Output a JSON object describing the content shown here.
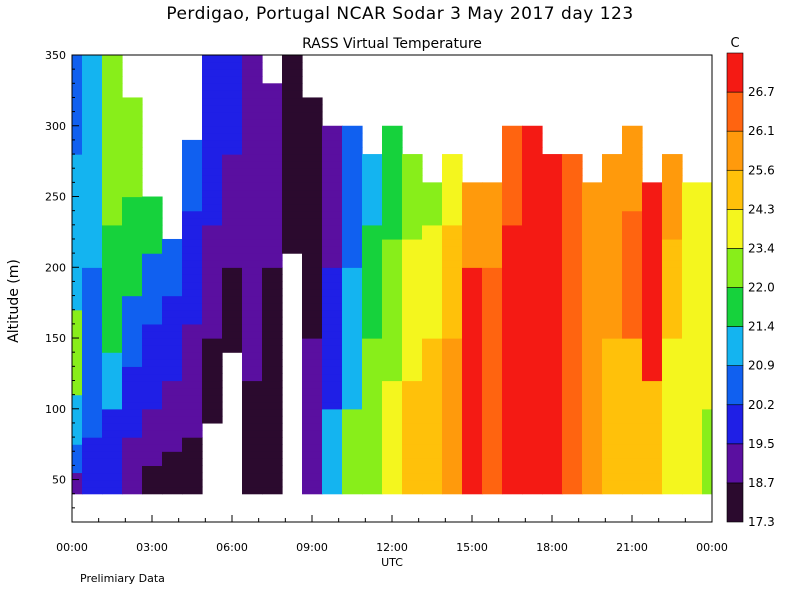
{
  "header": {
    "title": "Perdigao, Portugal  NCAR Sodar   3 May 2017  day 123",
    "subtitle": "RASS Virtual Temperature",
    "footer_note": "Prelimiary Data"
  },
  "chart_data": {
    "type": "heatmap",
    "title": "Perdigao, Portugal  NCAR Sodar   3 May 2017  day 123",
    "subtitle": "RASS Virtual Temperature",
    "xlabel": "UTC",
    "ylabel": "Altitude (m)",
    "x_ticks": [
      "00:00",
      "03:00",
      "06:00",
      "09:00",
      "12:00",
      "15:00",
      "18:00",
      "21:00",
      "00:00"
    ],
    "x_range_hours": [
      0,
      24
    ],
    "y_ticks": [
      50,
      100,
      150,
      200,
      250,
      300,
      350
    ],
    "ylim": [
      20,
      350
    ],
    "data_bottom_m": 40,
    "colorbar": {
      "unit": "C",
      "levels": [
        17.3,
        18.7,
        19.5,
        20.2,
        20.9,
        21.4,
        22.0,
        23.4,
        24.3,
        25.6,
        26.1,
        26.7
      ],
      "colors": [
        "#2b0a2e",
        "#5a0fa0",
        "#1f1fe6",
        "#1060f0",
        "#14b4f0",
        "#16d23c",
        "#88ee1a",
        "#f4f61e",
        "#ffc10a",
        "#ff9a0c",
        "#ff6410",
        "#f41a14"
      ]
    },
    "columns": [
      {
        "hour": 0.0,
        "top_m": 350,
        "by_altitude": [
          [
            40,
            18.7
          ],
          [
            55,
            20.2
          ],
          [
            75,
            20.9
          ],
          [
            110,
            22.0
          ],
          [
            170,
            20.9
          ],
          [
            280,
            20.2
          ],
          [
            350,
            20.2
          ]
        ]
      },
      {
        "hour": 0.75,
        "top_m": 350,
        "by_altitude": [
          [
            40,
            19.5
          ],
          [
            80,
            20.2
          ],
          [
            200,
            20.9
          ],
          [
            300,
            20.9
          ],
          [
            350,
            20.2
          ]
        ]
      },
      {
        "hour": 1.5,
        "top_m": 350,
        "by_altitude": [
          [
            40,
            19.5
          ],
          [
            100,
            20.9
          ],
          [
            140,
            21.4
          ],
          [
            230,
            22.0
          ],
          [
            350,
            20.9
          ]
        ]
      },
      {
        "hour": 2.25,
        "top_m": 320,
        "by_altitude": [
          [
            40,
            18.7
          ],
          [
            80,
            19.5
          ],
          [
            130,
            20.2
          ],
          [
            180,
            21.4
          ],
          [
            250,
            22.0
          ],
          [
            320,
            22.0
          ]
        ]
      },
      {
        "hour": 3.0,
        "top_m": 250,
        "by_altitude": [
          [
            40,
            17.3
          ],
          [
            60,
            18.7
          ],
          [
            100,
            19.5
          ],
          [
            160,
            20.2
          ],
          [
            210,
            21.4
          ],
          [
            250,
            20.9
          ]
        ]
      },
      {
        "hour": 3.75,
        "top_m": 220,
        "by_altitude": [
          [
            40,
            17.3
          ],
          [
            70,
            18.7
          ],
          [
            120,
            19.5
          ],
          [
            180,
            20.2
          ],
          [
            220,
            20.9
          ]
        ]
      },
      {
        "hour": 4.5,
        "top_m": 290,
        "by_altitude": [
          [
            40,
            17.3
          ],
          [
            80,
            18.7
          ],
          [
            160,
            19.5
          ],
          [
            240,
            20.2
          ],
          [
            290,
            20.9
          ]
        ]
      },
      {
        "hour": 5.25,
        "top_m": 350,
        "by_altitude": [
          [
            40,
            null
          ],
          [
            90,
            17.3
          ],
          [
            150,
            18.7
          ],
          [
            230,
            19.5
          ],
          [
            350,
            20.2
          ]
        ]
      },
      {
        "hour": 6.0,
        "top_m": 350,
        "by_altitude": [
          [
            40,
            null
          ],
          [
            140,
            17.3
          ],
          [
            200,
            18.7
          ],
          [
            280,
            19.5
          ],
          [
            350,
            20.2
          ]
        ]
      },
      {
        "hour": 6.75,
        "top_m": 350,
        "by_altitude": [
          [
            40,
            17.3
          ],
          [
            120,
            18.7
          ],
          [
            240,
            18.7
          ],
          [
            300,
            18.7
          ],
          [
            350,
            19.5
          ]
        ]
      },
      {
        "hour": 7.5,
        "top_m": 330,
        "by_altitude": [
          [
            40,
            17.3
          ],
          [
            90,
            17.3
          ],
          [
            200,
            18.7
          ],
          [
            330,
            18.7
          ]
        ]
      },
      {
        "hour": 8.25,
        "top_m": 350,
        "by_altitude": [
          [
            40,
            null
          ],
          [
            100,
            null
          ],
          [
            210,
            17.3
          ],
          [
            290,
            17.3
          ],
          [
            350,
            18.7
          ]
        ]
      },
      {
        "hour": 9.0,
        "top_m": 320,
        "by_altitude": [
          [
            40,
            18.7
          ],
          [
            150,
            17.3
          ],
          [
            250,
            17.3
          ],
          [
            320,
            18.7
          ]
        ]
      },
      {
        "hour": 9.75,
        "top_m": 300,
        "by_altitude": [
          [
            40,
            20.9
          ],
          [
            100,
            19.5
          ],
          [
            200,
            18.7
          ],
          [
            300,
            18.7
          ]
        ]
      },
      {
        "hour": 10.5,
        "top_m": 300,
        "by_altitude": [
          [
            40,
            22.0
          ],
          [
            100,
            20.9
          ],
          [
            200,
            20.2
          ],
          [
            300,
            19.5
          ]
        ]
      },
      {
        "hour": 11.25,
        "top_m": 280,
        "by_altitude": [
          [
            40,
            22.0
          ],
          [
            150,
            21.4
          ],
          [
            230,
            20.9
          ],
          [
            280,
            20.2
          ]
        ]
      },
      {
        "hour": 12.0,
        "top_m": 300,
        "by_altitude": [
          [
            40,
            23.4
          ],
          [
            120,
            22.0
          ],
          [
            220,
            21.4
          ],
          [
            300,
            21.4
          ]
        ]
      },
      {
        "hour": 12.75,
        "top_m": 280,
        "by_altitude": [
          [
            40,
            24.3
          ],
          [
            120,
            23.4
          ],
          [
            220,
            22.0
          ],
          [
            280,
            21.4
          ]
        ]
      },
      {
        "hour": 13.5,
        "top_m": 260,
        "by_altitude": [
          [
            40,
            24.3
          ],
          [
            150,
            23.4
          ],
          [
            230,
            22.0
          ],
          [
            260,
            22.0
          ]
        ]
      },
      {
        "hour": 14.25,
        "top_m": 280,
        "by_altitude": [
          [
            40,
            25.6
          ],
          [
            150,
            24.3
          ],
          [
            230,
            23.4
          ],
          [
            280,
            22.0
          ]
        ]
      },
      {
        "hour": 15.0,
        "top_m": 260,
        "by_altitude": [
          [
            40,
            26.7
          ],
          [
            80,
            26.7
          ],
          [
            200,
            25.6
          ],
          [
            260,
            24.3
          ]
        ]
      },
      {
        "hour": 15.75,
        "top_m": 260,
        "by_altitude": [
          [
            40,
            26.1
          ],
          [
            200,
            25.6
          ],
          [
            260,
            24.3
          ]
        ]
      },
      {
        "hour": 16.5,
        "top_m": 300,
        "by_altitude": [
          [
            40,
            26.7
          ],
          [
            150,
            26.7
          ],
          [
            230,
            26.1
          ],
          [
            300,
            23.4
          ]
        ]
      },
      {
        "hour": 17.25,
        "top_m": 300,
        "by_altitude": [
          [
            40,
            26.7
          ],
          [
            150,
            26.7
          ],
          [
            230,
            26.7
          ],
          [
            300,
            26.1
          ]
        ]
      },
      {
        "hour": 18.0,
        "top_m": 280,
        "by_altitude": [
          [
            40,
            26.7
          ],
          [
            200,
            26.7
          ],
          [
            280,
            25.6
          ]
        ]
      },
      {
        "hour": 18.75,
        "top_m": 280,
        "by_altitude": [
          [
            40,
            26.1
          ],
          [
            180,
            26.1
          ],
          [
            280,
            25.6
          ]
        ]
      },
      {
        "hour": 19.5,
        "top_m": 260,
        "by_altitude": [
          [
            40,
            25.6
          ],
          [
            180,
            25.6
          ],
          [
            260,
            24.3
          ]
        ]
      },
      {
        "hour": 20.25,
        "top_m": 280,
        "by_altitude": [
          [
            40,
            24.3
          ],
          [
            150,
            25.6
          ],
          [
            280,
            24.3
          ]
        ]
      },
      {
        "hour": 21.0,
        "top_m": 300,
        "by_altitude": [
          [
            40,
            24.3
          ],
          [
            150,
            26.1
          ],
          [
            240,
            25.6
          ],
          [
            300,
            24.3
          ]
        ]
      },
      {
        "hour": 21.75,
        "top_m": 260,
        "by_altitude": [
          [
            40,
            24.3
          ],
          [
            120,
            26.7
          ],
          [
            200,
            26.7
          ],
          [
            260,
            25.6
          ]
        ]
      },
      {
        "hour": 22.5,
        "top_m": 280,
        "by_altitude": [
          [
            40,
            23.4
          ],
          [
            150,
            24.3
          ],
          [
            220,
            25.6
          ],
          [
            280,
            24.3
          ]
        ]
      },
      {
        "hour": 23.25,
        "top_m": 260,
        "by_altitude": [
          [
            40,
            23.4
          ],
          [
            150,
            23.4
          ],
          [
            260,
            23.4
          ]
        ]
      },
      {
        "hour": 24.0,
        "top_m": 260,
        "by_altitude": [
          [
            40,
            22.0
          ],
          [
            100,
            23.4
          ],
          [
            260,
            23.4
          ]
        ]
      }
    ]
  }
}
